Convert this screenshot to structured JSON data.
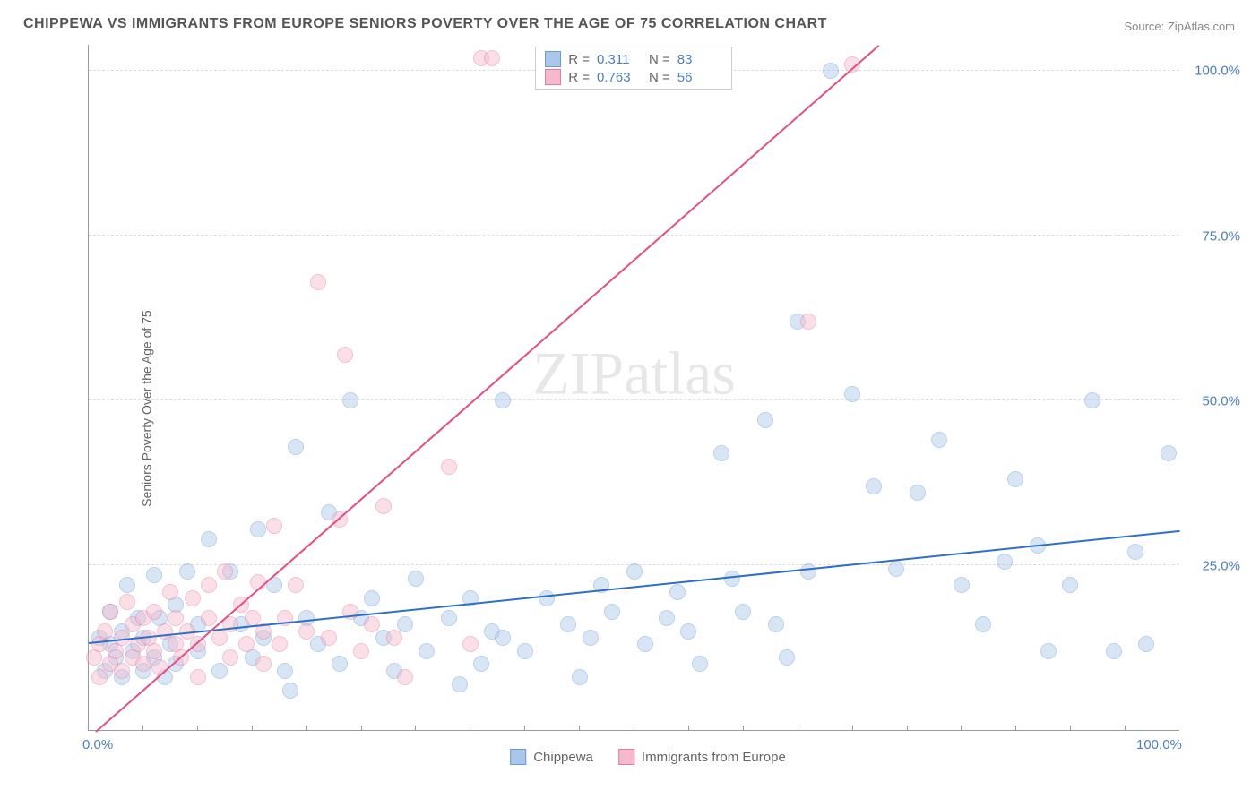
{
  "title": "CHIPPEWA VS IMMIGRANTS FROM EUROPE SENIORS POVERTY OVER THE AGE OF 75 CORRELATION CHART",
  "source": "Source: ZipAtlas.com",
  "ylabel": "Seniors Poverty Over the Age of 75",
  "watermark": "ZIPatlas",
  "chart": {
    "type": "scatter",
    "xlim": [
      0,
      100
    ],
    "ylim": [
      0,
      104
    ],
    "background_color": "#ffffff",
    "grid_color": "#dddddd",
    "grid_dash": true,
    "axis_color": "#999999",
    "marker_size": 18,
    "marker_opacity": 0.45,
    "yticks": [
      {
        "v": 25,
        "label": "25.0%"
      },
      {
        "v": 50,
        "label": "50.0%"
      },
      {
        "v": 75,
        "label": "75.0%"
      },
      {
        "v": 100,
        "label": "100.0%"
      }
    ],
    "xticks_major": [
      {
        "v": 0,
        "label": "0.0%"
      },
      {
        "v": 100,
        "label": "100.0%"
      }
    ],
    "xticks_minor": [
      5,
      10,
      15,
      20,
      25,
      30,
      35,
      40,
      45,
      50,
      55,
      60,
      65,
      70,
      75,
      80,
      85,
      90,
      95
    ],
    "label_color": "#4a7fc4",
    "label_fontsize": 15,
    "series": [
      {
        "name": "Chippewa",
        "color_fill": "#a9c7ea",
        "color_stroke": "#6a9dd6",
        "correlation_r": "0.311",
        "n": "83",
        "trend": {
          "y_at_x0": 13.5,
          "y_at_x100": 30.5,
          "color": "#2f6fc4",
          "width": 2
        },
        "points": [
          [
            1,
            14
          ],
          [
            1.5,
            9
          ],
          [
            2,
            18
          ],
          [
            2,
            13
          ],
          [
            2.5,
            11
          ],
          [
            3,
            15
          ],
          [
            3,
            8
          ],
          [
            3.5,
            22
          ],
          [
            4,
            12
          ],
          [
            4.5,
            17
          ],
          [
            5,
            9
          ],
          [
            5,
            14
          ],
          [
            6,
            23.5
          ],
          [
            6,
            11
          ],
          [
            6.5,
            17
          ],
          [
            7,
            8
          ],
          [
            7.5,
            13
          ],
          [
            8,
            19
          ],
          [
            8,
            10
          ],
          [
            9,
            24
          ],
          [
            10,
            12
          ],
          [
            10,
            16
          ],
          [
            11,
            29
          ],
          [
            12,
            9
          ],
          [
            13,
            24
          ],
          [
            14,
            16
          ],
          [
            15,
            11
          ],
          [
            15.5,
            30.5
          ],
          [
            16,
            14
          ],
          [
            17,
            22
          ],
          [
            18,
            9
          ],
          [
            18.5,
            6
          ],
          [
            19,
            43
          ],
          [
            20,
            17
          ],
          [
            21,
            13
          ],
          [
            22,
            33
          ],
          [
            23,
            10
          ],
          [
            24,
            50
          ],
          [
            25,
            17
          ],
          [
            26,
            20
          ],
          [
            27,
            14
          ],
          [
            28,
            9
          ],
          [
            29,
            16
          ],
          [
            30,
            23
          ],
          [
            31,
            12
          ],
          [
            33,
            17
          ],
          [
            34,
            7
          ],
          [
            35,
            20
          ],
          [
            36,
            10
          ],
          [
            37,
            15
          ],
          [
            38,
            14
          ],
          [
            38,
            50
          ],
          [
            40,
            12
          ],
          [
            42,
            20
          ],
          [
            44,
            16
          ],
          [
            45,
            8
          ],
          [
            46,
            14
          ],
          [
            47,
            22
          ],
          [
            48,
            18
          ],
          [
            50,
            24
          ],
          [
            51,
            13
          ],
          [
            53,
            17
          ],
          [
            54,
            21
          ],
          [
            55,
            15
          ],
          [
            56,
            10
          ],
          [
            58,
            42
          ],
          [
            59,
            23
          ],
          [
            60,
            18
          ],
          [
            62,
            47
          ],
          [
            63,
            16
          ],
          [
            64,
            11
          ],
          [
            65,
            62
          ],
          [
            66,
            24
          ],
          [
            68,
            100
          ],
          [
            70,
            51
          ],
          [
            72,
            37
          ],
          [
            74,
            24.5
          ],
          [
            76,
            36
          ],
          [
            78,
            44
          ],
          [
            80,
            22
          ],
          [
            82,
            16
          ],
          [
            84,
            25.5
          ],
          [
            85,
            38
          ],
          [
            87,
            28
          ],
          [
            88,
            12
          ],
          [
            90,
            22
          ],
          [
            92,
            50
          ],
          [
            94,
            12
          ],
          [
            96,
            27
          ],
          [
            97,
            13
          ],
          [
            99,
            42
          ]
        ]
      },
      {
        "name": "Immigrants from Europe",
        "color_fill": "#f4b9cc",
        "color_stroke": "#e77aa0",
        "correlation_r": "0.763",
        "n": "56",
        "trend": {
          "y_at_x0": -1,
          "y_at_x100": 144,
          "color": "#e84c82",
          "width": 2
        },
        "points": [
          [
            0.5,
            11
          ],
          [
            1,
            13
          ],
          [
            1,
            8
          ],
          [
            1.5,
            15
          ],
          [
            2,
            10
          ],
          [
            2,
            18
          ],
          [
            2.5,
            12
          ],
          [
            3,
            14
          ],
          [
            3,
            9
          ],
          [
            3.5,
            19.5
          ],
          [
            4,
            11
          ],
          [
            4,
            16
          ],
          [
            4.5,
            13
          ],
          [
            5,
            17
          ],
          [
            5,
            10
          ],
          [
            5.5,
            14
          ],
          [
            6,
            18
          ],
          [
            6,
            12
          ],
          [
            6.5,
            9.5
          ],
          [
            7,
            15
          ],
          [
            7.5,
            21
          ],
          [
            8,
            13
          ],
          [
            8,
            17
          ],
          [
            8.5,
            11
          ],
          [
            9,
            15
          ],
          [
            9.5,
            20
          ],
          [
            10,
            13
          ],
          [
            10,
            8
          ],
          [
            11,
            17
          ],
          [
            11,
            22
          ],
          [
            12,
            14
          ],
          [
            12.5,
            24
          ],
          [
            13,
            16
          ],
          [
            13,
            11
          ],
          [
            14,
            19
          ],
          [
            14.5,
            13
          ],
          [
            15,
            17
          ],
          [
            15.5,
            22.5
          ],
          [
            16,
            10
          ],
          [
            16,
            15
          ],
          [
            17,
            31
          ],
          [
            17.5,
            13
          ],
          [
            18,
            17
          ],
          [
            19,
            22
          ],
          [
            20,
            15
          ],
          [
            21,
            68
          ],
          [
            22,
            14
          ],
          [
            23,
            32
          ],
          [
            23.5,
            57
          ],
          [
            24,
            18
          ],
          [
            25,
            12
          ],
          [
            26,
            16
          ],
          [
            27,
            34
          ],
          [
            28,
            14
          ],
          [
            29,
            8
          ],
          [
            33,
            40
          ],
          [
            35,
            13
          ],
          [
            36,
            102
          ],
          [
            37,
            102
          ],
          [
            66,
            62
          ],
          [
            70,
            101
          ]
        ]
      }
    ]
  },
  "legend_top": {
    "r_label": "R =",
    "n_label": "N ="
  },
  "legend_bottom": [
    {
      "label": "Chippewa",
      "fill": "#a9c7ea",
      "stroke": "#6a9dd6"
    },
    {
      "label": "Immigrants from Europe",
      "fill": "#f4b9cc",
      "stroke": "#e77aa0"
    }
  ]
}
